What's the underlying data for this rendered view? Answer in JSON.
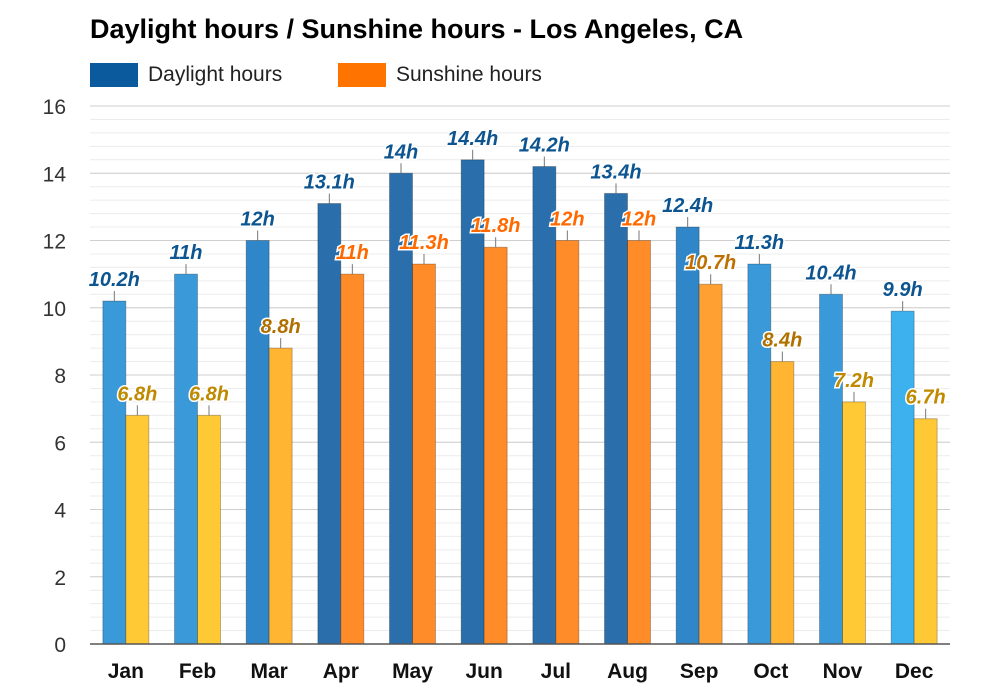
{
  "chart_data": {
    "type": "bar",
    "title": "Daylight hours / Sunshine hours - Los Angeles, CA",
    "categories": [
      "Jan",
      "Feb",
      "Mar",
      "Apr",
      "May",
      "Jun",
      "Jul",
      "Aug",
      "Sep",
      "Oct",
      "Nov",
      "Dec"
    ],
    "series": [
      {
        "name": "Daylight hours",
        "values": [
          10.2,
          11,
          12,
          13.1,
          14,
          14.4,
          14.2,
          13.4,
          12.4,
          11.3,
          10.4,
          9.9
        ],
        "labels": [
          "10.2h",
          "11h",
          "12h",
          "13.1h",
          "14h",
          "14.4h",
          "14.2h",
          "13.4h",
          "12.4h",
          "11.3h",
          "10.4h",
          "9.9h"
        ],
        "legend_color": "#0c5a9e",
        "colors": [
          "#3a9ad9",
          "#3a9ad9",
          "#2f86c8",
          "#2a6fab",
          "#2a6fab",
          "#2a6fab",
          "#2a6fab",
          "#2a6fab",
          "#2f86c8",
          "#3a9ad9",
          "#3a9ad9",
          "#3db0ee"
        ],
        "label_color": "#0d5590"
      },
      {
        "name": "Sunshine hours",
        "values": [
          6.8,
          6.8,
          8.8,
          11,
          11.3,
          11.8,
          12,
          12,
          10.7,
          8.4,
          7.2,
          6.7
        ],
        "labels": [
          "6.8h",
          "6.8h",
          "8.8h",
          "11h",
          "11.3h",
          "11.8h",
          "12h",
          "12h",
          "10.7h",
          "8.4h",
          "7.2h",
          "6.7h"
        ],
        "legend_color": "#ff7300",
        "colors": [
          "#ffc835",
          "#ffc835",
          "#ffb432",
          "#ff8c28",
          "#ff8c28",
          "#ff8c28",
          "#ff8c28",
          "#ff8c28",
          "#ffa032",
          "#ffb432",
          "#ffc835",
          "#ffc835"
        ],
        "label_colors": [
          "#c08a00",
          "#c08a00",
          "#b07000",
          "#ff6a00",
          "#ff6a00",
          "#ff6a00",
          "#ff6a00",
          "#ff6a00",
          "#c07000",
          "#b07000",
          "#c08a00",
          "#c08a00"
        ]
      }
    ],
    "ylim": [
      0,
      16
    ],
    "yticks": [
      0,
      2,
      4,
      6,
      8,
      10,
      12,
      14,
      16
    ],
    "grid": true,
    "legend": "top-left"
  }
}
